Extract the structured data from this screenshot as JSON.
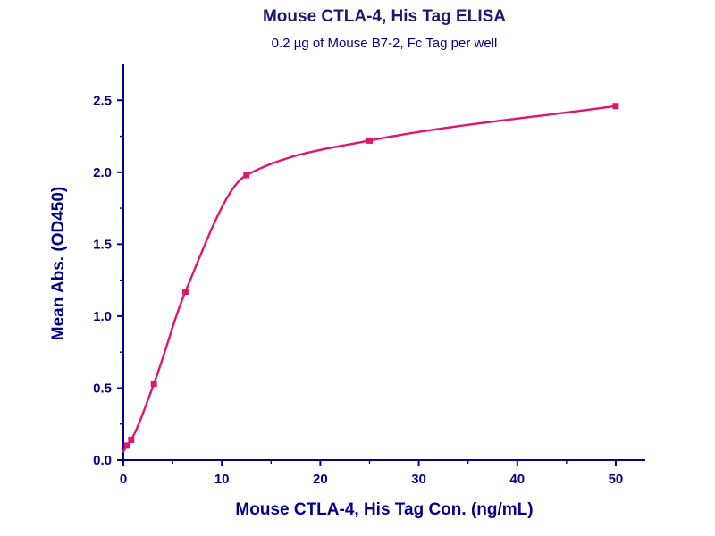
{
  "chart_data": {
    "type": "scatter",
    "title": "Mouse CTLA-4, His Tag ELISA",
    "subtitle": "0.2 µg of Mouse B7-2, Fc Tag per well",
    "xlabel": "Mouse CTLA-4, His Tag Con. (ng/mL)",
    "ylabel": "Mean Abs. (OD450)",
    "xlim": [
      0,
      53
    ],
    "ylim": [
      0,
      2.75
    ],
    "x_ticks": [
      0,
      10,
      20,
      30,
      40,
      50
    ],
    "y_ticks": [
      0.0,
      0.5,
      1.0,
      1.5,
      2.0,
      2.5
    ],
    "grid": false,
    "legend": false,
    "marker": "square",
    "curve": "4PL saturation fit through points",
    "points": [
      {
        "x": 0.4,
        "y": 0.1
      },
      {
        "x": 0.8,
        "y": 0.14
      },
      {
        "x": 3.1,
        "y": 0.53
      },
      {
        "x": 6.3,
        "y": 1.17
      },
      {
        "x": 12.5,
        "y": 1.98
      },
      {
        "x": 25,
        "y": 2.22
      },
      {
        "x": 50,
        "y": 2.46
      }
    ],
    "colors": {
      "curve": "#E0166E",
      "axis": "#00008B",
      "text": "#00008B",
      "title": "#191970"
    }
  }
}
